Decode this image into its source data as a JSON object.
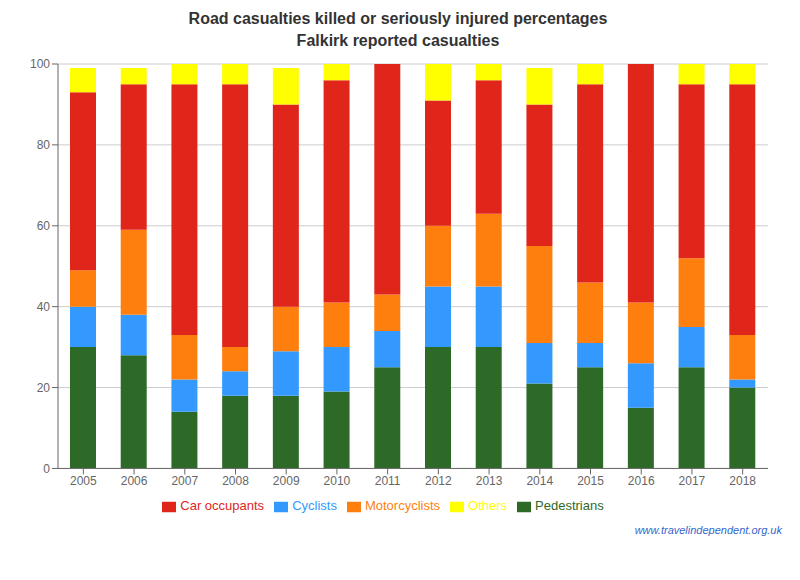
{
  "chart_data": {
    "type": "bar",
    "title": "Road casualties killed or seriously injured percentages",
    "subtitle": "Falkirk reported casualties",
    "categories": [
      "2005",
      "2006",
      "2007",
      "2008",
      "2009",
      "2010",
      "2011",
      "2012",
      "2013",
      "2014",
      "2015",
      "2016",
      "2017",
      "2018"
    ],
    "series": [
      {
        "name": "Pedestrians",
        "color": "#2d6a27",
        "values": [
          30,
          28,
          14,
          18,
          18,
          19,
          25,
          30,
          30,
          21,
          25,
          15,
          25,
          20
        ]
      },
      {
        "name": "Cyclists",
        "color": "#3399ff",
        "values": [
          10,
          10,
          8,
          6,
          11,
          11,
          9,
          15,
          15,
          10,
          6,
          11,
          10,
          2
        ]
      },
      {
        "name": "Motorcyclists",
        "color": "#ff7f0e",
        "values": [
          9,
          21,
          11,
          6,
          11,
          11,
          9,
          15,
          18,
          24,
          15,
          15,
          17,
          11
        ]
      },
      {
        "name": "Car occupants",
        "color": "#e0251b",
        "values": [
          44,
          36,
          62,
          65,
          50,
          55,
          57,
          31,
          33,
          35,
          49,
          59,
          43,
          62
        ]
      },
      {
        "name": "Others",
        "color": "#ffff00",
        "values": [
          6,
          4,
          5,
          5,
          9,
          4,
          0,
          9,
          4,
          9,
          5,
          0,
          5,
          5
        ]
      }
    ],
    "ylim": [
      0,
      100
    ],
    "yticks": [
      0,
      20,
      40,
      60,
      80,
      100
    ],
    "stacked": true,
    "grid": true,
    "legend": "bottom",
    "annotations": [
      {
        "text": "www.travelindependent.org.uk",
        "color": "#3366cc"
      }
    ]
  }
}
